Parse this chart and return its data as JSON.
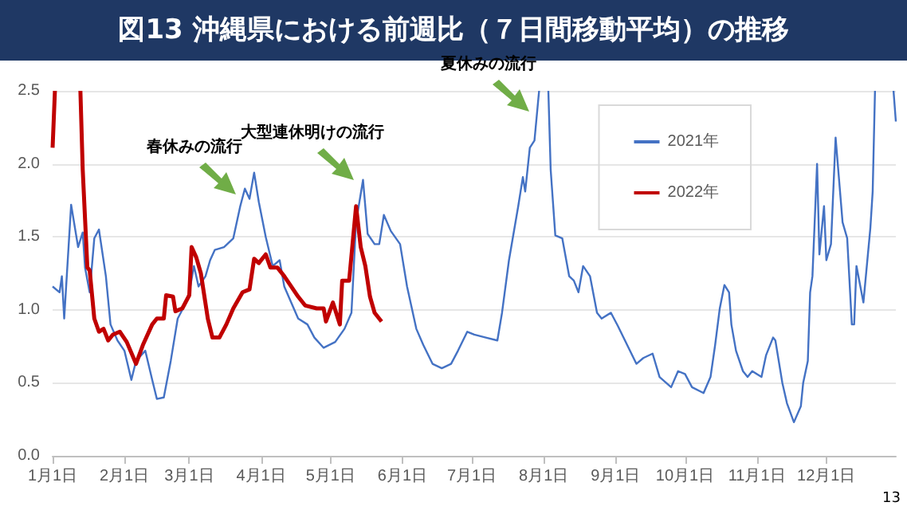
{
  "chart_data": {
    "type": "line",
    "title": "図13 沖縄県における前週比（７日間移動平均）の推移",
    "xlim": [
      "--01-01",
      "--12-31"
    ],
    "xticks": [
      {
        "value": "--01-01",
        "label": "1月1日"
      },
      {
        "value": "--02-01",
        "label": "2月1日"
      },
      {
        "value": "--03-01",
        "label": "3月1日"
      },
      {
        "value": "--04-01",
        "label": "4月1日"
      },
      {
        "value": "--05-01",
        "label": "5月1日"
      },
      {
        "value": "--06-01",
        "label": "6月1日"
      },
      {
        "value": "--07-01",
        "label": "7月1日"
      },
      {
        "value": "--08-01",
        "label": "8月1日"
      },
      {
        "value": "--09-01",
        "label": "9月1日"
      },
      {
        "value": "--10-01",
        "label": "10月1日"
      },
      {
        "value": "--11-01",
        "label": "11月1日"
      },
      {
        "value": "--12-01",
        "label": "12月1日"
      }
    ],
    "ylim": [
      0,
      2.5
    ],
    "yticks": [
      {
        "value": 0,
        "label": "0.0"
      },
      {
        "value": 0.5,
        "label": "0.5"
      },
      {
        "value": 1,
        "label": "1.0"
      },
      {
        "value": 1.5,
        "label": "1.5"
      },
      {
        "value": 2,
        "label": "2.0"
      },
      {
        "value": 2.5,
        "label": "2.5"
      }
    ],
    "grid": "y",
    "legend": "top right",
    "marker": "none",
    "line_style": "solid",
    "series": [
      {
        "name": "2021年",
        "color": "#4472c4",
        "x": [
          "--01-01",
          "--01-04",
          "--01-05",
          "--01-06",
          "--01-09",
          "--01-12",
          "--01-14",
          "--01-15",
          "--01-17",
          "--01-19",
          "--01-21",
          "--01-24",
          "--01-26",
          "--01-29",
          "--02-01",
          "--02-04",
          "--02-06",
          "--02-10",
          "--02-13",
          "--02-15",
          "--02-18",
          "--02-21",
          "--02-24",
          "--02-27",
          "--03-01",
          "--03-03",
          "--03-05",
          "--03-08",
          "--03-10",
          "--03-12",
          "--03-16",
          "--03-20",
          "--03-23",
          "--03-25",
          "--03-27",
          "--03-29",
          "--03-31",
          "--04-03",
          "--04-06",
          "--04-09",
          "--04-11",
          "--04-17",
          "--04-21",
          "--04-24",
          "--04-28",
          "--05-03",
          "--05-07",
          "--05-10",
          "--05-12",
          "--05-15",
          "--05-17",
          "--05-20",
          "--05-22",
          "--05-24",
          "--05-27",
          "--05-31",
          "--06-03",
          "--06-07",
          "--06-10",
          "--06-14",
          "--06-18",
          "--06-22",
          "--06-25",
          "--06-29",
          "--07-02",
          "--07-07",
          "--07-12",
          "--07-14",
          "--07-17",
          "--07-21",
          "--07-23",
          "--07-24",
          "--07-26",
          "--07-28",
          "--07-30",
          "--07-31",
          "--08-03",
          "--08-04",
          "--08-06",
          "--08-09",
          "--08-12",
          "--08-14",
          "--08-16",
          "--08-18",
          "--08-21",
          "--08-24",
          "--08-26",
          "--08-30",
          "--09-02",
          "--09-06",
          "--09-10",
          "--09-13",
          "--09-17",
          "--09-20",
          "--09-25",
          "--09-28",
          "--10-01",
          "--10-04",
          "--10-09",
          "--10-12",
          "--10-14",
          "--10-16",
          "--10-18",
          "--10-20",
          "--10-21",
          "--10-23",
          "--10-26",
          "--10-28",
          "--10-30",
          "--11-03",
          "--11-05",
          "--11-08",
          "--11-09",
          "--11-12",
          "--11-14",
          "--11-17",
          "--11-20",
          "--11-21",
          "--11-23",
          "--11-24",
          "--11-25",
          "--11-27",
          "--11-28",
          "--11-30",
          "--12-01",
          "--12-03",
          "--12-05",
          "--12-08",
          "--12-10",
          "--12-12",
          "--12-13",
          "--12-14",
          "--12-17",
          "--12-20",
          "--12-21",
          "--12-22",
          "--12-23",
          "--12-30",
          "--12-31"
        ],
        "values": [
          1.16,
          1.12,
          1.23,
          0.94,
          1.72,
          1.43,
          1.53,
          1.29,
          1.12,
          1.49,
          1.55,
          1.23,
          0.9,
          0.79,
          0.72,
          0.52,
          0.65,
          0.72,
          0.52,
          0.39,
          0.4,
          0.65,
          0.94,
          1.03,
          1.12,
          1.3,
          1.16,
          1.23,
          1.34,
          1.41,
          1.43,
          1.49,
          1.71,
          1.83,
          1.76,
          1.94,
          1.74,
          1.5,
          1.3,
          1.34,
          1.16,
          0.94,
          0.9,
          0.81,
          0.74,
          0.78,
          0.87,
          0.98,
          1.6,
          1.89,
          1.52,
          1.45,
          1.45,
          1.65,
          1.54,
          1.45,
          1.16,
          0.87,
          0.76,
          0.63,
          0.6,
          0.63,
          0.72,
          0.85,
          0.83,
          0.81,
          0.79,
          0.98,
          1.34,
          1.71,
          1.91,
          1.81,
          2.11,
          2.16,
          2.5,
          null,
          2.5,
          1.96,
          1.51,
          1.49,
          1.23,
          1.2,
          1.12,
          1.3,
          1.23,
          0.98,
          0.94,
          0.98,
          0.89,
          0.76,
          0.63,
          0.67,
          0.7,
          0.54,
          0.47,
          0.58,
          0.56,
          0.47,
          0.43,
          0.54,
          0.76,
          1.01,
          1.17,
          1.12,
          0.9,
          0.72,
          0.58,
          0.54,
          0.58,
          0.54,
          0.69,
          0.81,
          0.79,
          0.5,
          0.36,
          0.23,
          0.34,
          0.5,
          0.65,
          1.12,
          1.23,
          2.0,
          1.38,
          1.71,
          1.34,
          1.45,
          2.18,
          1.6,
          1.49,
          0.9,
          0.9,
          1.3,
          1.05,
          1.56,
          1.81,
          2.5,
          null,
          2.5,
          2.29
        ]
      },
      {
        "name": "2022年",
        "color": "#c00000",
        "x": [
          "--01-01",
          "--01-02",
          "--01-03",
          "--01-13",
          "--01-14",
          "--01-16",
          "--01-17",
          "--01-19",
          "--01-21",
          "--01-23",
          "--01-25",
          "--01-27",
          "--01-30",
          "--02-02",
          "--02-06",
          "--02-09",
          "--02-13",
          "--02-15",
          "--02-18",
          "--02-19",
          "--02-22",
          "--02-23",
          "--02-26",
          "--03-01",
          "--03-02",
          "--03-04",
          "--03-06",
          "--03-09",
          "--03-11",
          "--03-14",
          "--03-17",
          "--03-20",
          "--03-24",
          "--03-27",
          "--03-29",
          "--03-31",
          "--04-03",
          "--04-05",
          "--04-08",
          "--04-11",
          "--04-17",
          "--04-20",
          "--04-25",
          "--04-28",
          "--04-29",
          "--05-02",
          "--05-05",
          "--05-06",
          "--05-09",
          "--05-12",
          "--05-14",
          "--05-16",
          "--05-18",
          "--05-20",
          "--05-23"
        ],
        "values": [
          2.11,
          2.5,
          null,
          2.5,
          1.96,
          1.29,
          1.27,
          0.94,
          0.85,
          0.87,
          0.79,
          0.83,
          0.85,
          0.78,
          0.63,
          0.76,
          0.9,
          0.94,
          0.94,
          1.1,
          1.09,
          0.99,
          1.01,
          1.1,
          1.43,
          1.36,
          1.25,
          0.94,
          0.81,
          0.81,
          0.9,
          1.01,
          1.12,
          1.14,
          1.35,
          1.32,
          1.38,
          1.29,
          1.29,
          1.23,
          1.09,
          1.03,
          1.01,
          1.01,
          0.92,
          1.05,
          0.9,
          1.2,
          1.2,
          1.71,
          1.43,
          1.3,
          1.09,
          0.98,
          0.92
        ]
      }
    ],
    "annotations": [
      {
        "text": "春休みの流行",
        "x": "--03-21",
        "y": 1.79
      },
      {
        "text": "大型連休明けの流行",
        "x": "--05-11",
        "y": 1.89
      },
      {
        "text": "夏休みの流行",
        "x": "--07-26",
        "y": 2.36
      },
      "13"
    ]
  }
}
